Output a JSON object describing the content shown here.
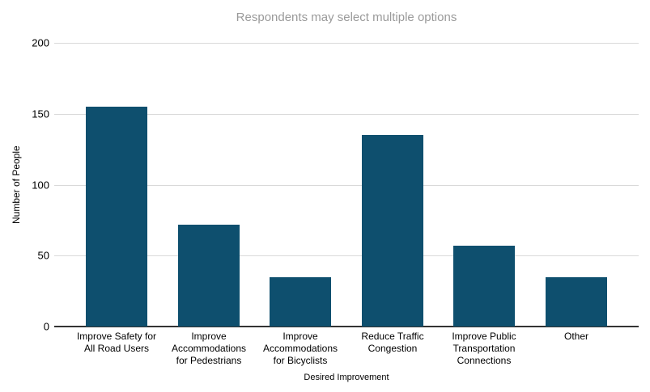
{
  "chart_data": {
    "type": "bar",
    "title": "Respondents may select multiple options",
    "xlabel": "Desired Improvement",
    "ylabel": "Number of People",
    "categories": [
      "Improve Safety for All Road Users",
      "Improve Accommodations for Pedestrians",
      "Improve Accommodations for Bicyclists",
      "Reduce Traffic Congestion",
      "Improve Public Transportation Connections",
      "Other"
    ],
    "category_lines": [
      [
        "Improve Safety for",
        "All Road Users"
      ],
      [
        "Improve",
        "Accommodations",
        "for Pedestrians"
      ],
      [
        "Improve",
        "Accommodations",
        "for Bicyclists"
      ],
      [
        "Reduce Traffic",
        "Congestion"
      ],
      [
        "Improve Public",
        "Transportation",
        "Connections"
      ],
      [
        "Other"
      ]
    ],
    "values": [
      155,
      72,
      35,
      135,
      57,
      35
    ],
    "yticks": [
      0,
      50,
      100,
      150,
      200
    ],
    "ylim": [
      0,
      200
    ],
    "grid": true,
    "legend": "none",
    "colors": {
      "bar": "#0e4f6e",
      "gridline": "#d9d9d9",
      "axis_line": "#333333",
      "title": "#9a9a9a",
      "tick": "#000000"
    }
  }
}
